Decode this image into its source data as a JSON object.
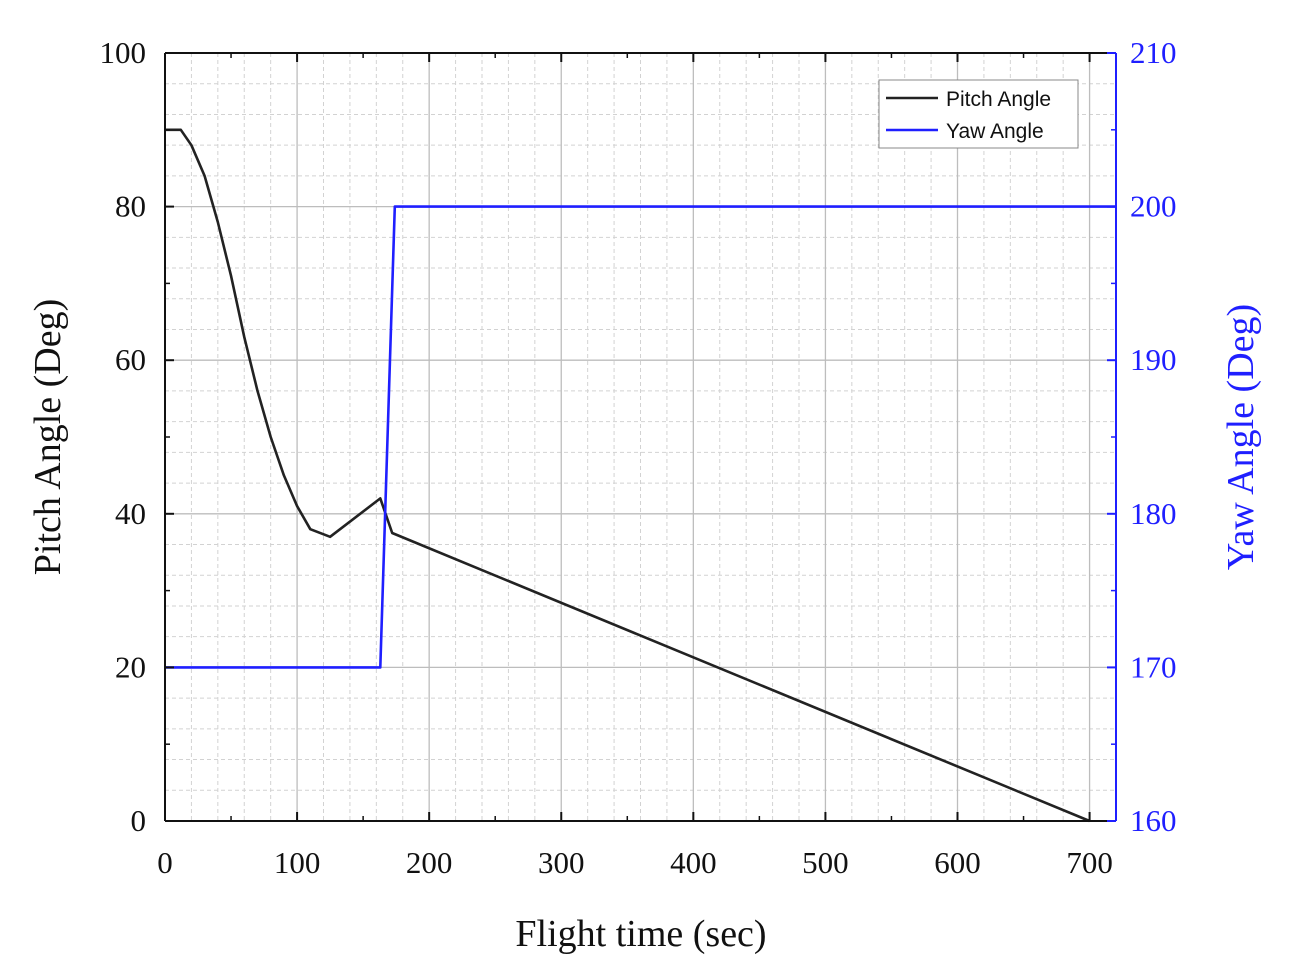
{
  "chart_data": {
    "type": "line",
    "title": "",
    "xlabel": "Flight time (sec)",
    "ylabel": "Pitch Angle (Deg)",
    "y2label": "Yaw Angle (Deg)",
    "xlim": [
      0,
      720
    ],
    "ylim": [
      0,
      100
    ],
    "y2lim": [
      160,
      210
    ],
    "x_ticks": [
      0,
      100,
      200,
      300,
      400,
      500,
      600,
      700
    ],
    "y_ticks": [
      0,
      20,
      40,
      60,
      80,
      100
    ],
    "y2_ticks": [
      160,
      170,
      180,
      190,
      200,
      210
    ],
    "grid": true,
    "legend_position": "top-right",
    "series": [
      {
        "name": "Pitch Angle",
        "axis": "left",
        "color": "#222222",
        "x": [
          0,
          12,
          20,
          30,
          40,
          50,
          60,
          70,
          80,
          90,
          100,
          110,
          125,
          163,
          172,
          700
        ],
        "y": [
          90,
          90,
          88,
          84,
          78,
          71,
          63,
          56,
          50,
          45,
          41,
          38,
          37,
          42,
          37.5,
          0
        ]
      },
      {
        "name": "Yaw Angle",
        "axis": "right",
        "color": "#1f1fff",
        "x": [
          0,
          163,
          174,
          720
        ],
        "y": [
          170,
          170,
          200,
          200
        ]
      }
    ]
  }
}
